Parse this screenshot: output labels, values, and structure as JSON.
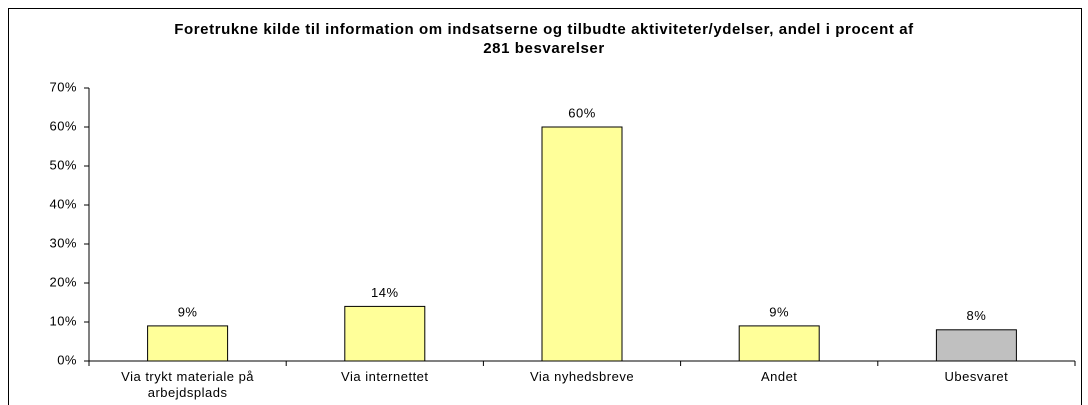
{
  "chart_data": {
    "type": "bar",
    "title": "Foretrukne kilde til information om indsatserne og tilbudte aktiviteter/ydelser, andel i procent af 281 besvarelser",
    "categories": [
      "Via trykt materiale på arbejdsplads",
      "Via internettet",
      "Via nyhedsbreve",
      "Andet",
      "Ubesvaret"
    ],
    "values": [
      9,
      14,
      60,
      9,
      8
    ],
    "value_labels": [
      "9%",
      "14%",
      "60%",
      "9%",
      "8%"
    ],
    "colors": [
      "#ffff99",
      "#ffff99",
      "#ffff99",
      "#ffff99",
      "#c0c0c0"
    ],
    "ylim": [
      0,
      70
    ],
    "yticks": [
      {
        "value": 0,
        "label": "0%"
      },
      {
        "value": 10,
        "label": "10%"
      },
      {
        "value": 20,
        "label": "20%"
      },
      {
        "value": 30,
        "label": "30%"
      },
      {
        "value": 40,
        "label": "40%"
      },
      {
        "value": 50,
        "label": "50%"
      },
      {
        "value": 60,
        "label": "60%"
      },
      {
        "value": 70,
        "label": "70%"
      }
    ],
    "grid": false
  }
}
